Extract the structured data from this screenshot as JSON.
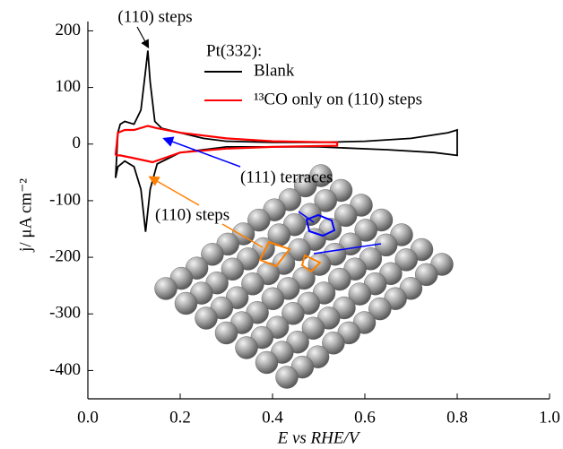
{
  "chart_data": {
    "type": "line",
    "x_label": "E vs RHE/V",
    "y_label": "j/ μA cm⁻²",
    "legend_title": "Pt(332):",
    "series": [
      {
        "name": "Blank",
        "color": "#000000",
        "x": [
          0.06,
          0.065,
          0.07,
          0.08,
          0.1,
          0.115,
          0.125,
          0.13,
          0.135,
          0.145,
          0.16,
          0.2,
          0.25,
          0.3,
          0.4,
          0.5,
          0.6,
          0.7,
          0.78,
          0.8,
          0.8,
          0.75,
          0.65,
          0.5,
          0.3,
          0.2,
          0.15,
          0.135,
          0.125,
          0.115,
          0.1,
          0.08,
          0.065,
          0.06
        ],
        "values": [
          -60,
          20,
          35,
          40,
          35,
          60,
          130,
          165,
          110,
          40,
          28,
          20,
          10,
          5,
          3,
          3,
          5,
          10,
          20,
          25,
          -20,
          -15,
          -10,
          -5,
          -5,
          -15,
          -35,
          -80,
          -155,
          -80,
          -40,
          -30,
          -40,
          -60
        ]
      },
      {
        "name": "¹³CO only on (110) steps",
        "color": "#ff0000",
        "x": [
          0.06,
          0.065,
          0.08,
          0.1,
          0.13,
          0.15,
          0.2,
          0.3,
          0.4,
          0.54,
          0.54,
          0.4,
          0.3,
          0.2,
          0.14,
          0.1,
          0.07,
          0.06,
          0.06
        ],
        "values": [
          -20,
          20,
          25,
          25,
          32,
          28,
          20,
          10,
          5,
          3,
          -3,
          -5,
          -8,
          -15,
          -32,
          -25,
          -20,
          -20,
          -20
        ]
      }
    ],
    "xlim": [
      0,
      1
    ],
    "ylim": [
      -450,
      200
    ],
    "xticks": [
      {
        "value": 0,
        "label": "0.0"
      },
      0.2,
      0.4,
      0.6,
      0.8,
      {
        "value": 1,
        "label": "1.0"
      }
    ],
    "yticks": [
      -400,
      -300,
      -200,
      -100,
      0,
      100,
      200
    ],
    "annotations": [
      "(110) steps",
      "(111) terraces",
      "(110) steps"
    ]
  }
}
